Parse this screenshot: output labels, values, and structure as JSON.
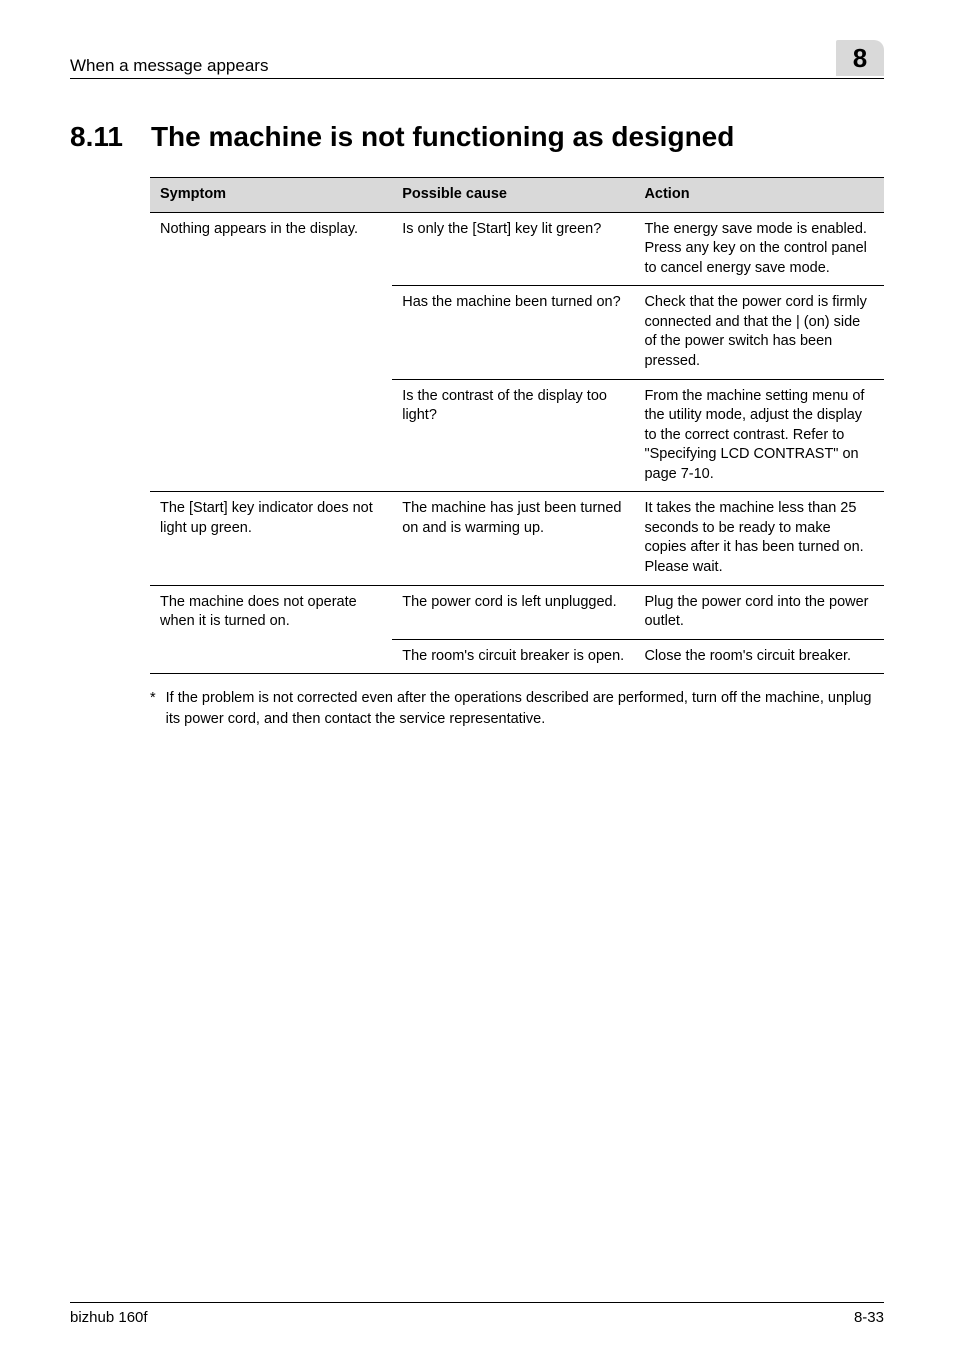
{
  "header": {
    "running_head": "When a message appears",
    "chapter_tab": "8"
  },
  "section": {
    "number": "8.11",
    "title": "The machine is not functioning as designed"
  },
  "table": {
    "columns": [
      "Symptom",
      "Possible cause",
      "Action"
    ],
    "groups": [
      {
        "symptom": "Nothing appears in the display.",
        "rows": [
          {
            "cause": "Is only the [Start] key lit green?",
            "action": "The energy save mode is enabled. Press any key on the control panel to cancel energy save mode."
          },
          {
            "cause": "Has the machine been turned on?",
            "action": "Check that the power cord is firmly connected and that the | (on) side of the power switch has been pressed."
          },
          {
            "cause": "Is the contrast of the display too light?",
            "action": "From the machine setting menu of the utility mode, adjust the display to the correct contrast. Refer to \"Specifying LCD CONTRAST\" on page 7-10."
          }
        ]
      },
      {
        "symptom": "The [Start] key indicator does not light up green.",
        "rows": [
          {
            "cause": "The machine has just been turned on and is warming up.",
            "action": "It takes the machine less than 25 seconds to be ready to make copies after it has been turned on.\nPlease wait."
          }
        ]
      },
      {
        "symptom": "The machine does not operate when it is turned on.",
        "rows": [
          {
            "cause": "The power cord is left unplugged.",
            "action": "Plug the power cord into the power outlet."
          },
          {
            "cause": "The room's circuit breaker is open.",
            "action": "Close the room's circuit breaker."
          }
        ]
      }
    ]
  },
  "footnote": {
    "mark": "*",
    "text": "If the problem is not corrected even after the operations described are performed, turn off the machine, unplug its power cord, and then contact the service representative."
  },
  "footer": {
    "left": "bizhub 160f",
    "right": "8-33"
  }
}
